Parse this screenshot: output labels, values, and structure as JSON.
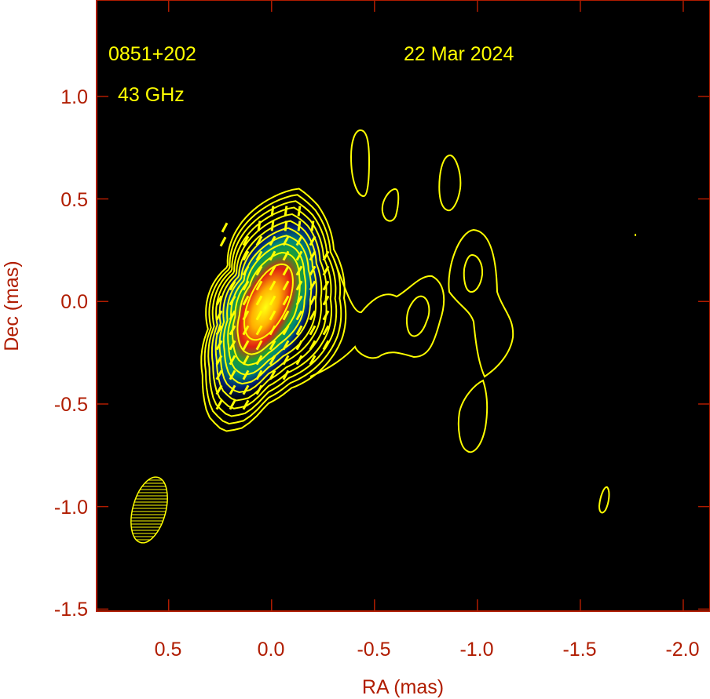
{
  "chart_data": {
    "type": "heatmap",
    "subtype": "radio map with contours and polarization vectors",
    "annotations": {
      "source": "0851+202",
      "frequency": "43 GHz",
      "date": "22 Mar 2024"
    },
    "xlabel": "RA (mas)",
    "ylabel": "Dec (mas)",
    "xlim": [
      0.85,
      -2.13
    ],
    "ylim": [
      -1.51,
      1.47
    ],
    "x_ticks": [
      "0.5",
      "0.0",
      "-0.5",
      "-1.0",
      "-1.5",
      "-2.0"
    ],
    "x_tick_values": [
      0.5,
      0.0,
      -0.5,
      -1.0,
      -1.5,
      -2.0
    ],
    "y_ticks": [
      "1.0",
      "0.5",
      "0.0",
      "-0.5",
      "-1.0",
      "-1.5"
    ],
    "y_tick_values": [
      1.0,
      0.5,
      0.0,
      -0.5,
      -1.0,
      -1.5
    ],
    "core_peak": {
      "ra": 0.0,
      "dec": 0.0
    },
    "colormap": [
      "#ffff00",
      "#ff9900",
      "#e01010",
      "#10a040",
      "#008080",
      "#001060",
      "#000000"
    ],
    "contour_color": "#ffff00",
    "axis_color": "#b01c00",
    "background": "#000000",
    "beam": {
      "ra": 0.6,
      "dec": -1.04
    }
  }
}
